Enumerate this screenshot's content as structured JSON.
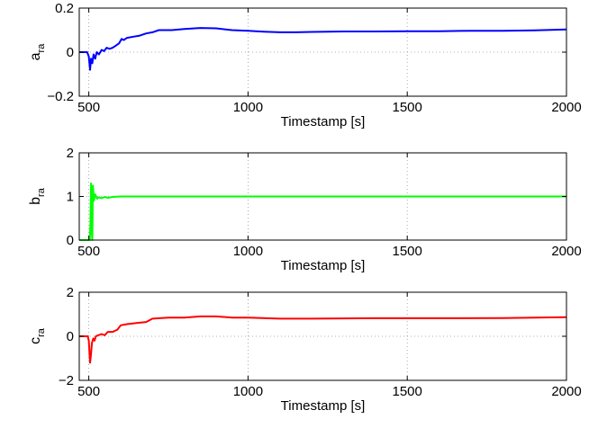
{
  "chart_data": [
    {
      "type": "line",
      "xlabel": "Timestamp [s]",
      "ylabel": "a",
      "ylabel_sub": "ra",
      "xlim": [
        470,
        2000
      ],
      "ylim": [
        -0.2,
        0.2
      ],
      "xticks": [
        500,
        1000,
        1500,
        2000
      ],
      "yticks": [
        -0.2,
        0,
        0.2
      ],
      "xtick_labels": [
        "500",
        "1000",
        "1500",
        "2000"
      ],
      "ytick_labels": [
        "−0.2",
        "0",
        "0.2"
      ],
      "grid": true,
      "series": [
        {
          "color": "#0000ff",
          "points": [
            [
              470,
              0.0
            ],
            [
              495,
              0.0
            ],
            [
              500,
              -0.02
            ],
            [
              504,
              -0.08
            ],
            [
              507,
              -0.03
            ],
            [
              511,
              -0.05
            ],
            [
              515,
              -0.01
            ],
            [
              520,
              -0.03
            ],
            [
              525,
              0.0
            ],
            [
              532,
              -0.01
            ],
            [
              540,
              0.01
            ],
            [
              548,
              0.005
            ],
            [
              556,
              0.02
            ],
            [
              565,
              0.015
            ],
            [
              575,
              0.02
            ],
            [
              585,
              0.03
            ],
            [
              595,
              0.04
            ],
            [
              603,
              0.06
            ],
            [
              610,
              0.055
            ],
            [
              620,
              0.065
            ],
            [
              640,
              0.07
            ],
            [
              660,
              0.075
            ],
            [
              680,
              0.085
            ],
            [
              700,
              0.09
            ],
            [
              720,
              0.1
            ],
            [
              760,
              0.1
            ],
            [
              800,
              0.105
            ],
            [
              850,
              0.11
            ],
            [
              900,
              0.108
            ],
            [
              950,
              0.1
            ],
            [
              1000,
              0.097
            ],
            [
              1050,
              0.093
            ],
            [
              1100,
              0.09
            ],
            [
              1150,
              0.09
            ],
            [
              1200,
              0.092
            ],
            [
              1300,
              0.094
            ],
            [
              1400,
              0.094
            ],
            [
              1500,
              0.095
            ],
            [
              1600,
              0.095
            ],
            [
              1700,
              0.097
            ],
            [
              1800,
              0.097
            ],
            [
              1900,
              0.099
            ],
            [
              2000,
              0.103
            ]
          ]
        }
      ]
    },
    {
      "type": "line",
      "xlabel": "Timestamp [s]",
      "ylabel": "b",
      "ylabel_sub": "ra",
      "xlim": [
        470,
        2000
      ],
      "ylim": [
        0,
        2
      ],
      "xticks": [
        500,
        1000,
        1500,
        2000
      ],
      "yticks": [
        0,
        1,
        2
      ],
      "xtick_labels": [
        "500",
        "1000",
        "1500",
        "2000"
      ],
      "ytick_labels": [
        "0",
        "1",
        "2"
      ],
      "grid": true,
      "series": [
        {
          "color": "#00ff00",
          "points": [
            [
              470,
              0.0
            ],
            [
              503,
              0.0
            ],
            [
              505,
              0.4
            ],
            [
              507,
              1.3
            ],
            [
              509,
              0.2
            ],
            [
              511,
              0.0
            ],
            [
              513,
              1.25
            ],
            [
              516,
              0.9
            ],
            [
              520,
              1.05
            ],
            [
              526,
              0.95
            ],
            [
              532,
              0.98
            ],
            [
              540,
              0.96
            ],
            [
              550,
              0.99
            ],
            [
              560,
              0.97
            ],
            [
              575,
              0.99
            ],
            [
              600,
              1.0
            ],
            [
              700,
              1.0
            ],
            [
              800,
              1.0
            ],
            [
              1000,
              1.0
            ],
            [
              1200,
              1.0
            ],
            [
              1500,
              1.0
            ],
            [
              1800,
              1.0
            ],
            [
              2000,
              1.0
            ]
          ]
        }
      ]
    },
    {
      "type": "line",
      "xlabel": "Timestamp [s]",
      "ylabel": "c",
      "ylabel_sub": "ra",
      "xlim": [
        470,
        2000
      ],
      "ylim": [
        -2,
        2
      ],
      "xticks": [
        500,
        1000,
        1500,
        2000
      ],
      "yticks": [
        -2,
        0,
        2
      ],
      "xtick_labels": [
        "500",
        "1000",
        "1500",
        "2000"
      ],
      "ytick_labels": [
        "−2",
        "0",
        "2"
      ],
      "grid": true,
      "series": [
        {
          "color": "#ff0000",
          "points": [
            [
              470,
              0.0
            ],
            [
              497,
              0.0
            ],
            [
              500,
              -0.2
            ],
            [
              504,
              -1.2
            ],
            [
              507,
              -0.8
            ],
            [
              510,
              -0.3
            ],
            [
              514,
              -0.1
            ],
            [
              518,
              -0.2
            ],
            [
              522,
              0.0
            ],
            [
              530,
              0.05
            ],
            [
              540,
              0.1
            ],
            [
              550,
              0.05
            ],
            [
              560,
              0.2
            ],
            [
              575,
              0.2
            ],
            [
              590,
              0.3
            ],
            [
              600,
              0.5
            ],
            [
              620,
              0.55
            ],
            [
              650,
              0.6
            ],
            [
              680,
              0.65
            ],
            [
              700,
              0.8
            ],
            [
              750,
              0.85
            ],
            [
              800,
              0.85
            ],
            [
              850,
              0.9
            ],
            [
              900,
              0.9
            ],
            [
              950,
              0.85
            ],
            [
              1000,
              0.85
            ],
            [
              1100,
              0.8
            ],
            [
              1200,
              0.8
            ],
            [
              1400,
              0.82
            ],
            [
              1600,
              0.82
            ],
            [
              1800,
              0.83
            ],
            [
              2000,
              0.87
            ]
          ]
        }
      ]
    }
  ]
}
